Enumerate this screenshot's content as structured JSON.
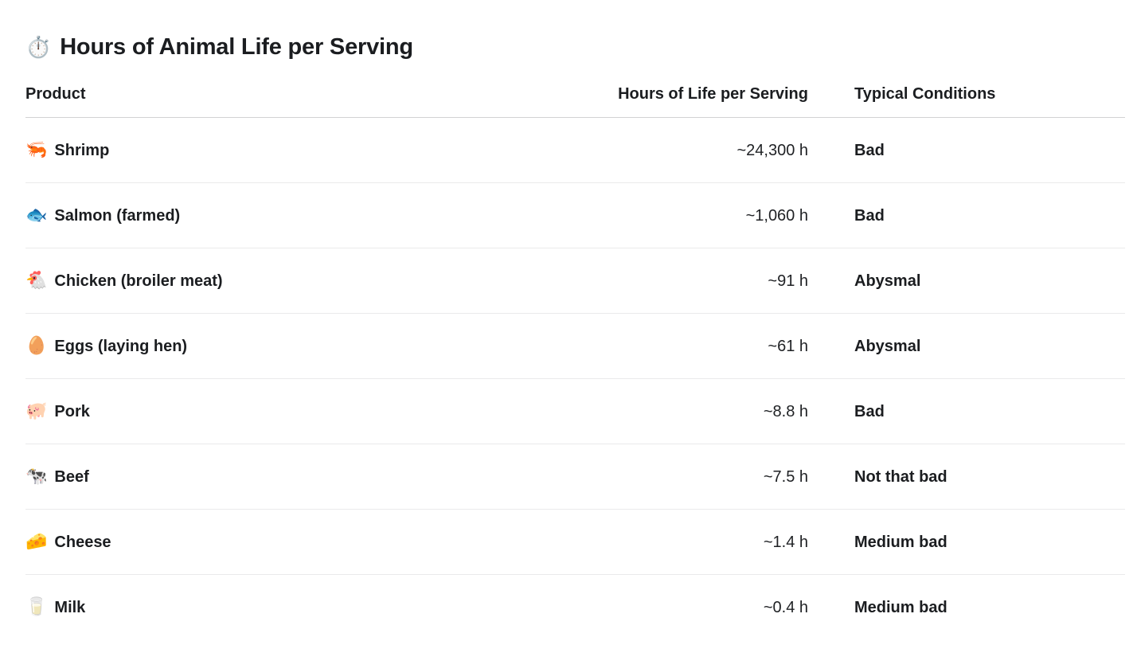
{
  "page": {
    "background": "#ffffff",
    "title_icon": "⏱️",
    "title": "Hours of Animal Life per Serving"
  },
  "colors": {
    "text": "#1b1d20",
    "value_text": "#1f2124",
    "header_divider": "#d2d2d3",
    "row_divider": "#eaeaeb"
  },
  "chart_data": {
    "type": "table",
    "title": "Hours of Animal Life per Serving",
    "columns": [
      "Product",
      "Hours of Life per Serving",
      "Typical Conditions"
    ],
    "rows": [
      {
        "emoji": "🦐",
        "product": "Shrimp",
        "hours": "~24,300 h",
        "hours_numeric": 24300,
        "conditions": "Bad"
      },
      {
        "emoji": "🐟",
        "product": "Salmon (farmed)",
        "hours": "~1,060 h",
        "hours_numeric": 1060,
        "conditions": "Bad"
      },
      {
        "emoji": "🐔",
        "product": "Chicken (broiler meat)",
        "hours": "~91 h",
        "hours_numeric": 91,
        "conditions": "Abysmal"
      },
      {
        "emoji": "🥚",
        "product": "Eggs (laying hen)",
        "hours": "~61 h",
        "hours_numeric": 61,
        "conditions": "Abysmal"
      },
      {
        "emoji": "🐖",
        "product": "Pork",
        "hours": "~8.8 h",
        "hours_numeric": 8.8,
        "conditions": "Bad"
      },
      {
        "emoji": "🐄",
        "product": "Beef",
        "hours": "~7.5 h",
        "hours_numeric": 7.5,
        "conditions": "Not that bad"
      },
      {
        "emoji": "🧀",
        "product": "Cheese",
        "hours": "~1.4 h",
        "hours_numeric": 1.4,
        "conditions": "Medium bad"
      },
      {
        "emoji": "🥛",
        "product": "Milk",
        "hours": "~0.4 h",
        "hours_numeric": 0.4,
        "conditions": "Medium bad"
      }
    ]
  }
}
